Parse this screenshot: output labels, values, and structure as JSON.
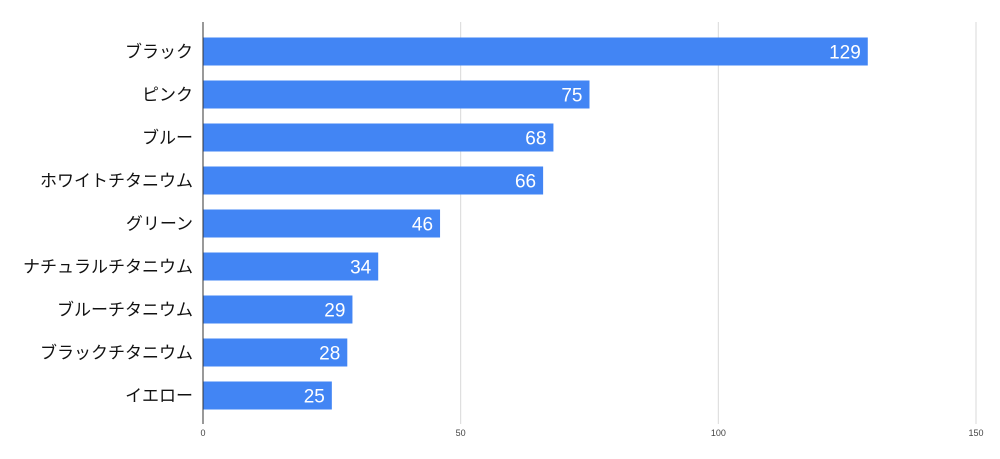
{
  "chart_data": {
    "type": "bar",
    "orientation": "horizontal",
    "categories": [
      "ブラック",
      "ピンク",
      "ブルー",
      "ホワイトチタニウム",
      "グリーン",
      "ナチュラルチタニウム",
      "ブルーチタニウム",
      "ブラックチタニウム",
      "イエロー"
    ],
    "values": [
      129,
      75,
      68,
      66,
      46,
      34,
      29,
      28,
      25
    ],
    "xlim": [
      0,
      150
    ],
    "xticks": [
      "0",
      "50",
      "100",
      "150"
    ],
    "data_labels": true,
    "grid": true,
    "legend": "none",
    "bar_color": "#4285f4",
    "grid_color": "#d9d9d9",
    "axis_color": "#333333"
  }
}
